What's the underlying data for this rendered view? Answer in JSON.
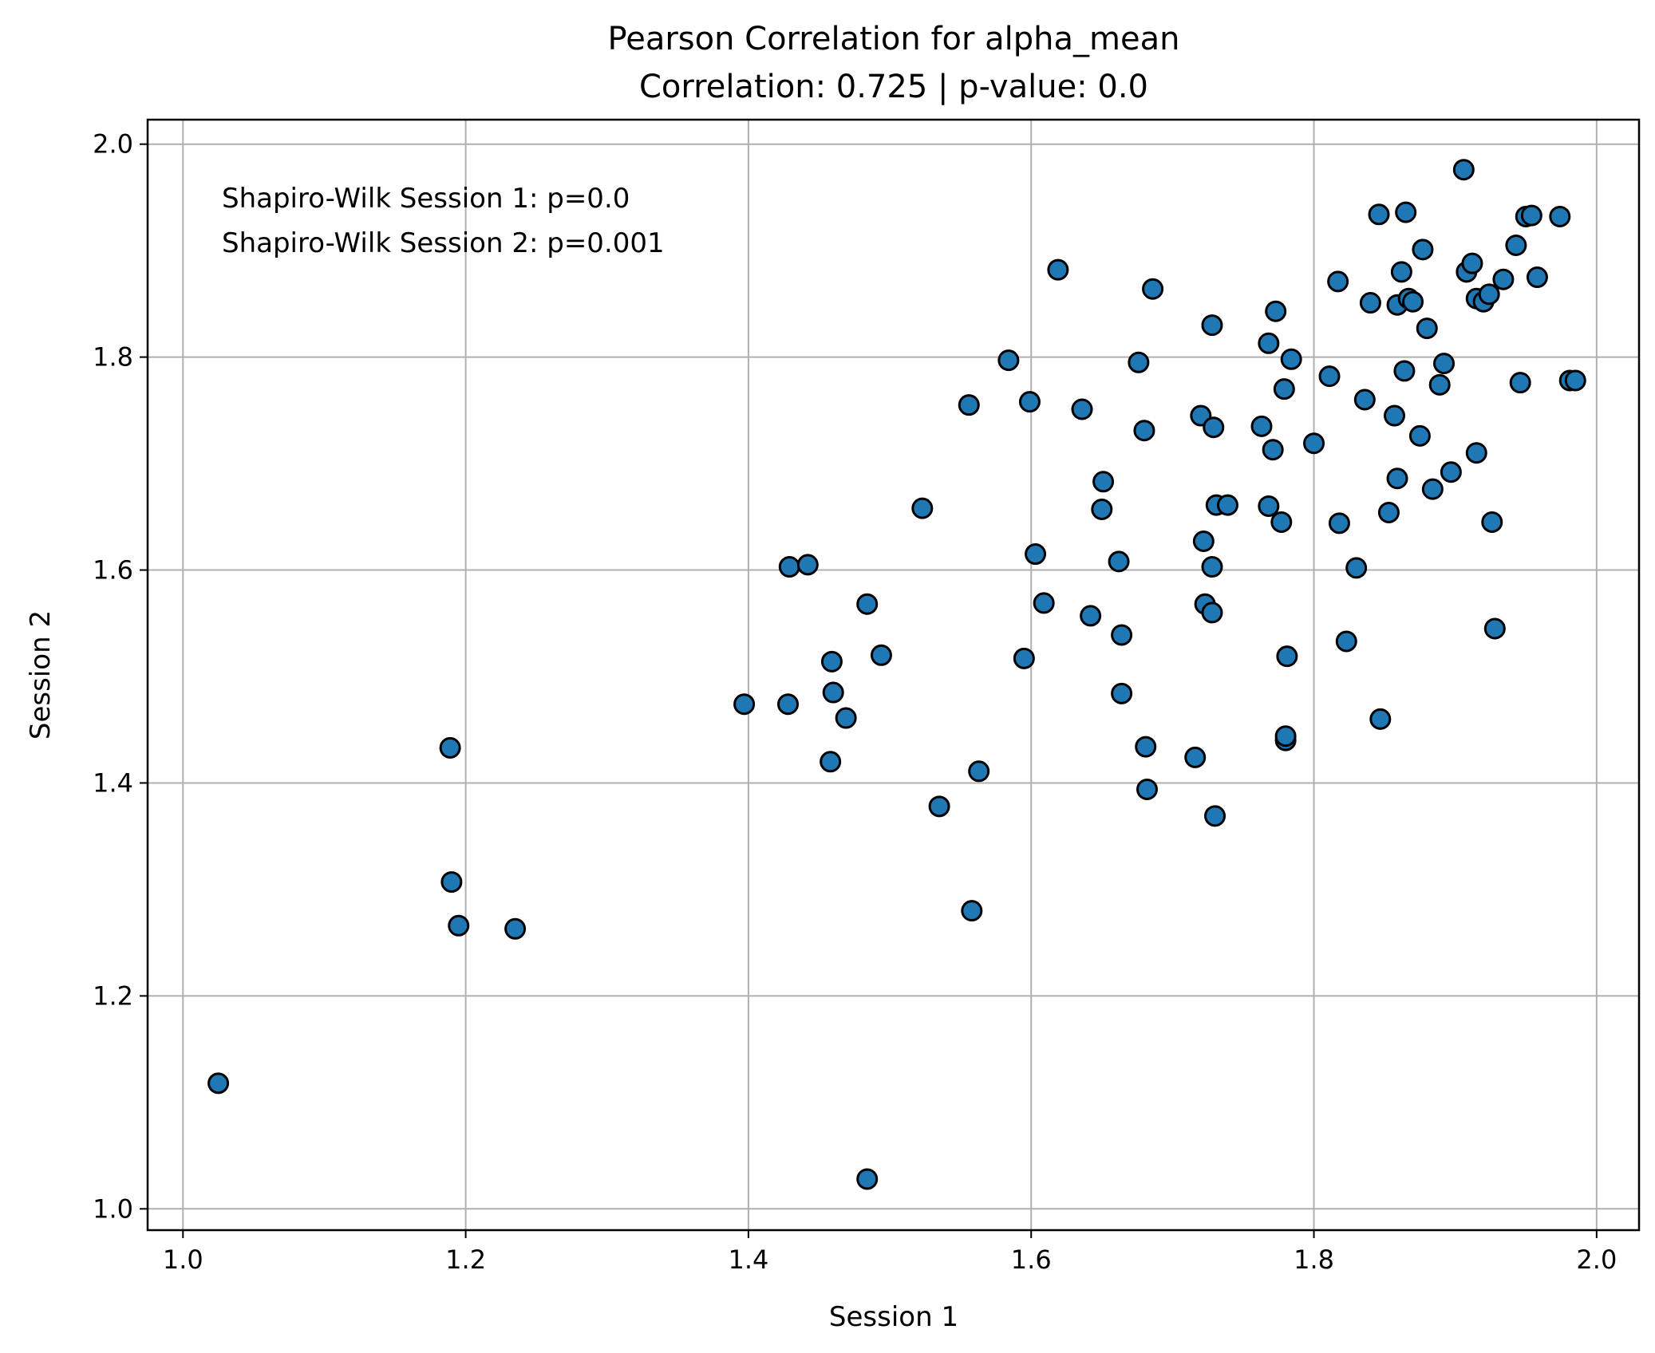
{
  "chart_data": {
    "type": "scatter",
    "title": "Pearson Correlation for alpha_mean",
    "subtitle": "Correlation: 0.725 | p-value: 0.0",
    "xlabel": "Session 1",
    "ylabel": "Session 2",
    "xlim": [
      0.975,
      2.03
    ],
    "ylim": [
      0.98,
      2.023
    ],
    "xticks": [
      1.0,
      1.2,
      1.4,
      1.6,
      1.8,
      2.0
    ],
    "yticks": [
      1.0,
      1.2,
      1.4,
      1.6,
      1.8,
      2.0
    ],
    "xtick_labels": [
      "1.0",
      "1.2",
      "1.4",
      "1.6",
      "1.8",
      "2.0"
    ],
    "ytick_labels": [
      "1.0",
      "1.2",
      "1.4",
      "1.6",
      "1.8",
      "2.0"
    ],
    "grid": true,
    "marker_color": "#1f77b4",
    "marker_edge": "#000000",
    "annotations": [
      "Shapiro-Wilk Session 1: p=0.0",
      "Shapiro-Wilk Session 2: p=0.001"
    ],
    "x": [
      1.025,
      1.189,
      1.19,
      1.195,
      1.235,
      1.397,
      1.428,
      1.429,
      1.442,
      1.458,
      1.459,
      1.46,
      1.469,
      1.484,
      1.484,
      1.494,
      1.523,
      1.535,
      1.556,
      1.558,
      1.563,
      1.584,
      1.595,
      1.599,
      1.603,
      1.609,
      1.619,
      1.636,
      1.642,
      1.65,
      1.651,
      1.662,
      1.664,
      1.664,
      1.676,
      1.68,
      1.681,
      1.682,
      1.686,
      1.716,
      1.72,
      1.722,
      1.723,
      1.728,
      1.728,
      1.728,
      1.729,
      1.73,
      1.731,
      1.739,
      1.763,
      1.768,
      1.768,
      1.771,
      1.773,
      1.777,
      1.779,
      1.78,
      1.781,
      1.78,
      1.784,
      1.8,
      1.811,
      1.817,
      1.818,
      1.823,
      1.83,
      1.836,
      1.84,
      1.846,
      1.847,
      1.853,
      1.857,
      1.859,
      1.859,
      1.862,
      1.864,
      1.865,
      1.867,
      1.87,
      1.875,
      1.877,
      1.88,
      1.884,
      1.889,
      1.892,
      1.897,
      1.906,
      1.908,
      1.912,
      1.915,
      1.915,
      1.92,
      1.924,
      1.926,
      1.928,
      1.934,
      1.943,
      1.946,
      1.95,
      1.954,
      1.958,
      1.974,
      1.981,
      1.985
    ],
    "y": [
      1.118,
      1.433,
      1.307,
      1.266,
      1.263,
      1.474,
      1.474,
      1.603,
      1.605,
      1.42,
      1.514,
      1.485,
      1.461,
      1.028,
      1.568,
      1.52,
      1.658,
      1.378,
      1.755,
      1.28,
      1.411,
      1.797,
      1.517,
      1.758,
      1.615,
      1.569,
      1.882,
      1.751,
      1.557,
      1.657,
      1.683,
      1.608,
      1.539,
      1.484,
      1.795,
      1.731,
      1.434,
      1.394,
      1.864,
      1.424,
      1.745,
      1.627,
      1.568,
      1.83,
      1.603,
      1.56,
      1.734,
      1.369,
      1.661,
      1.661,
      1.735,
      1.813,
      1.66,
      1.713,
      1.843,
      1.645,
      1.77,
      1.44,
      1.519,
      1.444,
      1.798,
      1.719,
      1.782,
      1.871,
      1.644,
      1.533,
      1.602,
      1.76,
      1.851,
      1.934,
      1.46,
      1.654,
      1.745,
      1.686,
      1.849,
      1.88,
      1.787,
      1.936,
      1.855,
      1.852,
      1.726,
      1.901,
      1.827,
      1.676,
      1.774,
      1.794,
      1.692,
      1.976,
      1.88,
      1.888,
      1.855,
      1.71,
      1.852,
      1.859,
      1.645,
      1.545,
      1.873,
      1.905,
      1.776,
      1.932,
      1.933,
      1.875,
      1.932,
      1.778,
      1.778
    ]
  }
}
